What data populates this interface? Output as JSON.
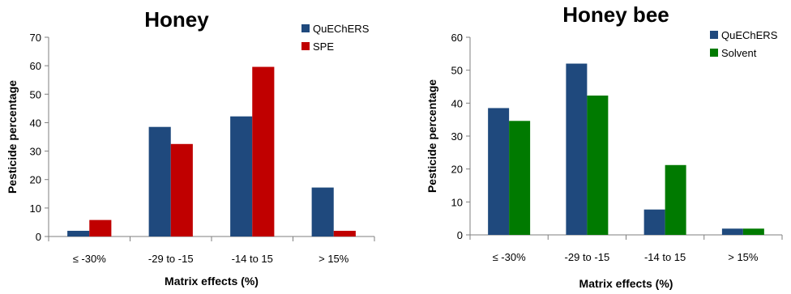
{
  "chart_data": [
    {
      "type": "bar",
      "title": "Honey",
      "xlabel": "Matrix effects (%)",
      "ylabel": "Pesticide percentage",
      "categories": [
        "≤ -30%",
        "-29 to -15",
        "-14 to 15",
        "> 15%"
      ],
      "ylim": [
        0,
        70
      ],
      "yticks": [
        0,
        10,
        20,
        30,
        40,
        50,
        60,
        70
      ],
      "grid": false,
      "legend_position": "top-right",
      "series": [
        {
          "name": "QuEChERS",
          "color": "#1F497D",
          "values": [
            2,
            38.5,
            42.2,
            17.2
          ]
        },
        {
          "name": "SPE",
          "color": "#C00000",
          "values": [
            5.8,
            32.5,
            59.6,
            2
          ]
        }
      ]
    },
    {
      "type": "bar",
      "title": "Honey bee",
      "xlabel": "Matrix effects (%)",
      "ylabel": "Pesticide percentage",
      "categories": [
        "≤ -30%",
        "-29 to  -15",
        "-14 to 15",
        "> 15%"
      ],
      "ylim": [
        0,
        60
      ],
      "yticks": [
        0,
        10,
        20,
        30,
        40,
        50,
        60
      ],
      "grid": false,
      "legend_position": "top-right",
      "series": [
        {
          "name": "QuEChERS",
          "color": "#1F497D",
          "values": [
            38.5,
            52,
            7.7,
            1.9
          ]
        },
        {
          "name": "Solvent",
          "color": "#007A00",
          "values": [
            34.6,
            42.3,
            21.2,
            1.9
          ]
        }
      ]
    }
  ]
}
